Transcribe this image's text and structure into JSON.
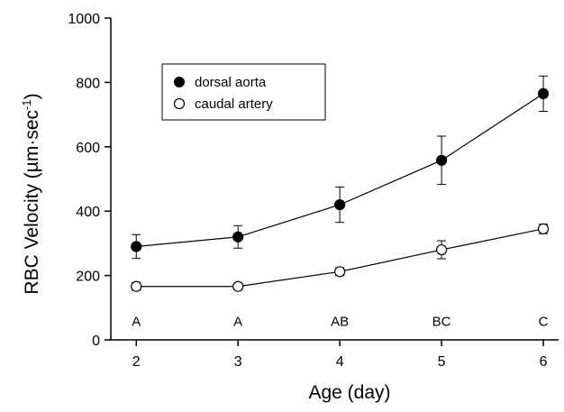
{
  "chart_data": {
    "type": "line",
    "xlabel": "Age (day)",
    "ylabel": "RBC Velocity (µm·sec",
    "ylabel_superscript": "-1",
    "ylabel_close": ")",
    "x": [
      2,
      3,
      4,
      5,
      6
    ],
    "xlim": [
      1.75,
      6.15
    ],
    "ylim": [
      0,
      1000
    ],
    "xticks": [
      2,
      3,
      4,
      5,
      6
    ],
    "yticks": [
      0,
      200,
      400,
      600,
      800,
      1000
    ],
    "grid": false,
    "legend_position": "top-left",
    "series": [
      {
        "name": "dorsal aorta",
        "marker": "filled-circle",
        "values": [
          290,
          320,
          420,
          558,
          765
        ],
        "error": [
          37,
          35,
          55,
          75,
          55
        ]
      },
      {
        "name": "caudal artery",
        "marker": "open-circle",
        "values": [
          166,
          166,
          212,
          280,
          345
        ],
        "error": [
          12,
          10,
          12,
          28,
          15
        ]
      }
    ],
    "annotations": [
      "A",
      "A",
      "AB",
      "BC",
      "C"
    ],
    "annotation_y": 60
  },
  "colors": {
    "line": "#000000",
    "background": "#ffffff"
  }
}
